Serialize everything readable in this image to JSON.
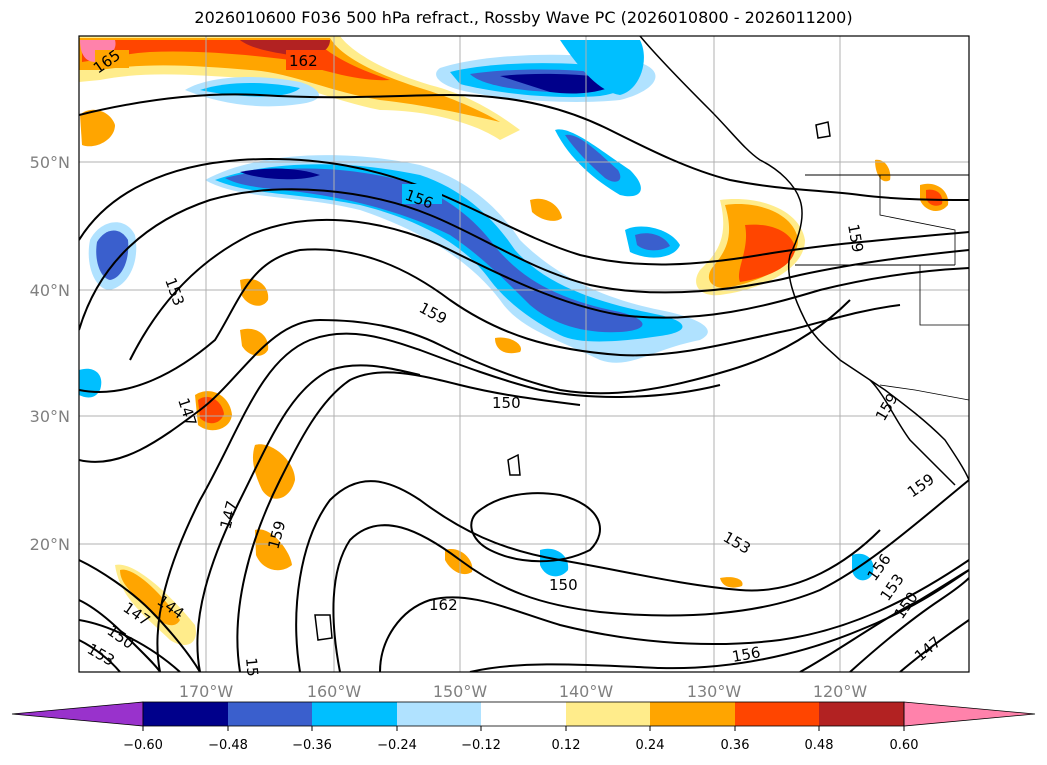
{
  "title": "2026010600 F036 500 hPa refract., Rossby Wave PC (2026010800 - 2026011200)",
  "longitude_labels": [
    "170°W",
    "160°W",
    "150°W",
    "140°W",
    "130°W",
    "120°W"
  ],
  "latitude_labels": [
    "50°N",
    "40°N",
    "30°N",
    "20°N"
  ],
  "colorbar": {
    "tick_labels": [
      "−0.60",
      "−0.48",
      "−0.36",
      "−0.24",
      "−0.12",
      "0.12",
      "0.24",
      "0.36",
      "0.48",
      "0.60"
    ],
    "colors": [
      "#9932cc",
      "#00008b",
      "#3a5fcd",
      "#00bfff",
      "#b0e2ff",
      "#ffffff",
      "#ffec8b",
      "#ffa500",
      "#ff4500",
      "#b22222",
      "#ff82ab"
    ]
  },
  "contour_labels": [
    "165",
    "162",
    "156",
    "159",
    "153",
    "159",
    "150",
    "147",
    "147",
    "159",
    "150",
    "162",
    "153",
    "159",
    "159",
    "156",
    "153",
    "150",
    "147",
    "156",
    "147",
    "144",
    "150",
    "153",
    "15"
  ],
  "colors": {
    "land_line": "#000000",
    "contour": "#000000",
    "grid": "#b0b0b0",
    "tick_text": "#808080"
  }
}
